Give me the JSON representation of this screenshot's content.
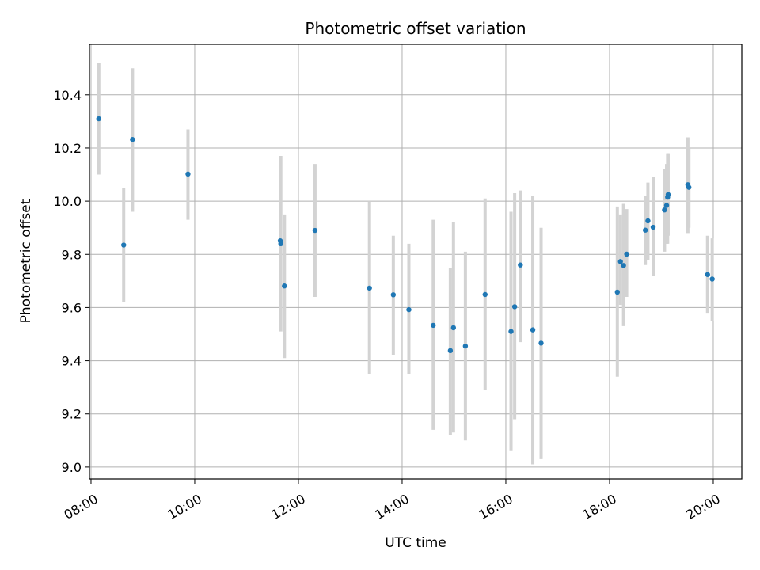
{
  "chart_data": {
    "type": "scatter",
    "title": "Photometric offset variation",
    "xlabel": "UTC time",
    "ylabel": "Photometric offset",
    "x_unit": "UTC time (hours)",
    "xlim": [
      7.97,
      20.55
    ],
    "ylim": [
      8.955,
      10.59
    ],
    "x_ticks": [
      8,
      10,
      12,
      14,
      16,
      18,
      20
    ],
    "x_tick_labels": [
      "08:00",
      "10:00",
      "12:00",
      "14:00",
      "16:00",
      "18:00",
      "20:00"
    ],
    "y_ticks": [
      9.0,
      9.2,
      9.4,
      9.6,
      9.8,
      10.0,
      10.2,
      10.4
    ],
    "y_tick_labels": [
      "9.0",
      "9.2",
      "9.4",
      "9.6",
      "9.8",
      "10.0",
      "10.2",
      "10.4"
    ],
    "grid": true,
    "point_color": "#1f77b4",
    "errorbar_color": "#d3d3d3",
    "points": [
      {
        "x": 8.15,
        "y": 10.31,
        "ylow": 10.1,
        "yhigh": 10.52
      },
      {
        "x": 8.63,
        "y": 9.835,
        "ylow": 9.62,
        "yhigh": 10.05
      },
      {
        "x": 8.8,
        "y": 10.232,
        "ylow": 9.96,
        "yhigh": 10.5
      },
      {
        "x": 9.87,
        "y": 10.102,
        "ylow": 9.93,
        "yhigh": 10.27
      },
      {
        "x": 11.65,
        "y": 9.851,
        "ylow": 9.53,
        "yhigh": 10.17
      },
      {
        "x": 11.66,
        "y": 9.84,
        "ylow": 9.51,
        "yhigh": 10.17
      },
      {
        "x": 11.73,
        "y": 9.681,
        "ylow": 9.41,
        "yhigh": 9.95
      },
      {
        "x": 12.32,
        "y": 9.89,
        "ylow": 9.64,
        "yhigh": 10.14
      },
      {
        "x": 13.37,
        "y": 9.673,
        "ylow": 9.35,
        "yhigh": 10.0
      },
      {
        "x": 13.83,
        "y": 9.648,
        "ylow": 9.42,
        "yhigh": 9.87
      },
      {
        "x": 14.13,
        "y": 9.592,
        "ylow": 9.35,
        "yhigh": 9.84
      },
      {
        "x": 14.6,
        "y": 9.533,
        "ylow": 9.14,
        "yhigh": 9.93
      },
      {
        "x": 14.93,
        "y": 9.438,
        "ylow": 9.12,
        "yhigh": 9.75
      },
      {
        "x": 14.99,
        "y": 9.524,
        "ylow": 9.13,
        "yhigh": 9.92
      },
      {
        "x": 15.22,
        "y": 9.455,
        "ylow": 9.1,
        "yhigh": 9.81
      },
      {
        "x": 15.6,
        "y": 9.649,
        "ylow": 9.29,
        "yhigh": 10.01
      },
      {
        "x": 16.1,
        "y": 9.51,
        "ylow": 9.06,
        "yhigh": 9.96
      },
      {
        "x": 16.17,
        "y": 9.603,
        "ylow": 9.18,
        "yhigh": 10.03
      },
      {
        "x": 16.28,
        "y": 9.76,
        "ylow": 9.47,
        "yhigh": 10.04
      },
      {
        "x": 16.52,
        "y": 9.516,
        "ylow": 9.01,
        "yhigh": 10.02
      },
      {
        "x": 16.68,
        "y": 9.466,
        "ylow": 9.03,
        "yhigh": 9.9
      },
      {
        "x": 18.15,
        "y": 9.658,
        "ylow": 9.34,
        "yhigh": 9.98
      },
      {
        "x": 18.21,
        "y": 9.773,
        "ylow": 9.61,
        "yhigh": 9.95
      },
      {
        "x": 18.27,
        "y": 9.758,
        "ylow": 9.53,
        "yhigh": 9.99
      },
      {
        "x": 18.33,
        "y": 9.801,
        "ylow": 9.64,
        "yhigh": 9.97
      },
      {
        "x": 18.69,
        "y": 9.891,
        "ylow": 9.76,
        "yhigh": 10.02
      },
      {
        "x": 18.74,
        "y": 9.926,
        "ylow": 9.78,
        "yhigh": 10.07
      },
      {
        "x": 18.84,
        "y": 9.902,
        "ylow": 9.72,
        "yhigh": 10.09
      },
      {
        "x": 19.06,
        "y": 9.967,
        "ylow": 9.81,
        "yhigh": 10.12
      },
      {
        "x": 19.1,
        "y": 9.984,
        "ylow": 9.84,
        "yhigh": 10.14
      },
      {
        "x": 19.12,
        "y": 10.015,
        "ylow": 9.84,
        "yhigh": 10.18
      },
      {
        "x": 19.13,
        "y": 10.025,
        "ylow": 9.87,
        "yhigh": 10.18
      },
      {
        "x": 19.51,
        "y": 10.062,
        "ylow": 9.88,
        "yhigh": 10.24
      },
      {
        "x": 19.53,
        "y": 10.052,
        "ylow": 9.9,
        "yhigh": 10.2
      },
      {
        "x": 19.89,
        "y": 9.724,
        "ylow": 9.58,
        "yhigh": 9.87
      },
      {
        "x": 19.98,
        "y": 9.707,
        "ylow": 9.55,
        "yhigh": 9.86
      }
    ]
  }
}
